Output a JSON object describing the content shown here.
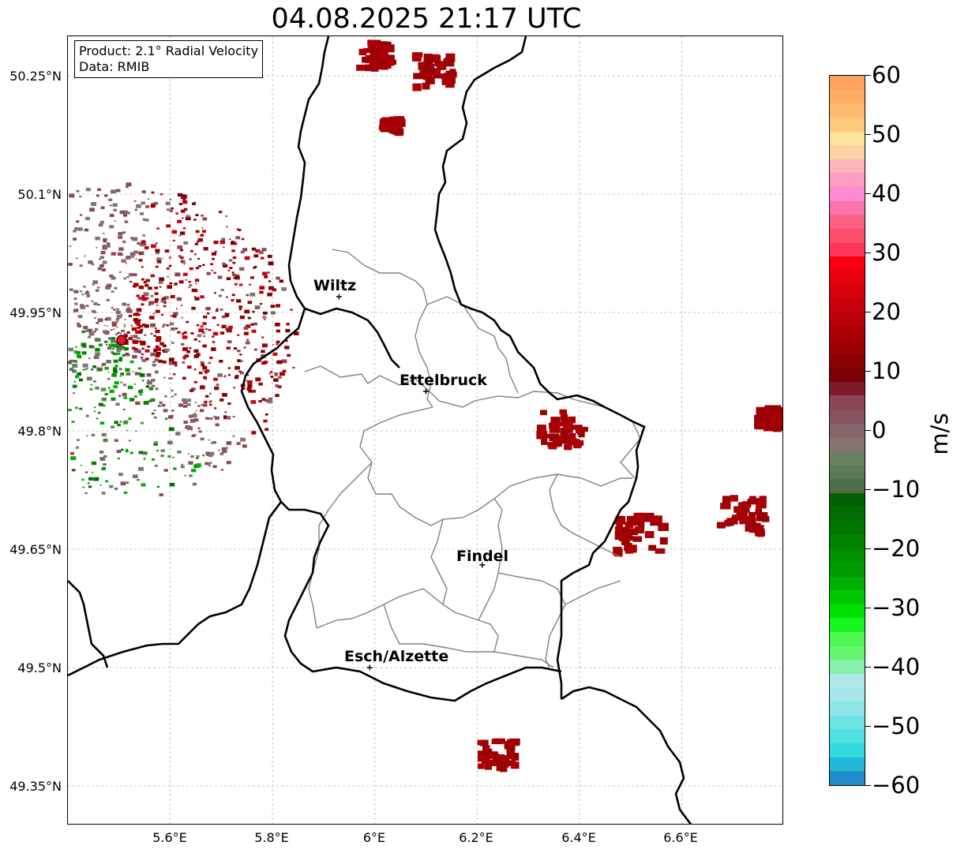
{
  "title": "04.08.2025 21:17 UTC",
  "info_box": {
    "product": "Product: 2.1° Radial Velocity",
    "data": "Data: RMIB"
  },
  "axes": {
    "x_ticks": [
      "5.6°E",
      "5.8°E",
      "6°E",
      "6.2°E",
      "6.4°E",
      "6.6°E"
    ],
    "y_ticks": [
      "50.25°N",
      "50.1°N",
      "49.95°N",
      "49.8°N",
      "49.65°N",
      "49.5°N",
      "49.35°N"
    ],
    "x_values": [
      5.6,
      5.8,
      6.0,
      6.2,
      6.4,
      6.6
    ],
    "y_values": [
      50.25,
      50.1,
      49.95,
      49.8,
      49.65,
      49.5,
      49.35
    ],
    "lon_range": [
      5.4,
      6.8
    ],
    "lat_range": [
      49.3,
      50.3
    ]
  },
  "cities": [
    {
      "name": "Wiltz",
      "lon": 5.93,
      "lat": 49.97
    },
    {
      "name": "Ettelbruck",
      "lon": 6.1,
      "lat": 49.85
    },
    {
      "name": "Findel",
      "lon": 6.21,
      "lat": 49.63
    },
    {
      "name": "Esch/Alzette",
      "lon": 5.99,
      "lat": 49.5
    }
  ],
  "radar_site": {
    "lon": 5.505,
    "lat": 49.915,
    "color": "#e8191c"
  },
  "colorbar": {
    "label": "m/s",
    "min": -60,
    "max": 60,
    "tick_labels": [
      "60",
      "50",
      "40",
      "30",
      "20",
      "10",
      "0",
      "−10",
      "−20",
      "−30",
      "−40",
      "−50",
      "−60"
    ],
    "tick_values": [
      60,
      50,
      40,
      30,
      20,
      10,
      0,
      -10,
      -20,
      -30,
      -40,
      -50,
      -60
    ],
    "colors_top_to_bottom": [
      "#fea35e",
      "#fcaf65",
      "#fdbd70",
      "#fecb7e",
      "#fde49c",
      "#fdd1a2",
      "#fdb5b9",
      "#fe9cc4",
      "#fe8ad2",
      "#fc73ae",
      "#fd5f83",
      "#fc4d6a",
      "#fc375a",
      "#f80012",
      "#e7000e",
      "#d8000c",
      "#c8000a",
      "#b80008",
      "#a90006",
      "#9a0004",
      "#8a0003",
      "#7a0001",
      "#7e1b2a",
      "#8c4552",
      "#86525f",
      "#85656b",
      "#857370",
      "#6b8060",
      "#5c7a57",
      "#4f7046",
      "#006200",
      "#006d00",
      "#007800",
      "#008400",
      "#009000",
      "#009b00",
      "#00b000",
      "#00c800",
      "#00e000",
      "#16f51f",
      "#4bf84f",
      "#66f66e",
      "#88f0aa",
      "#aee7ec",
      "#a6e8e8",
      "#8fe6e6",
      "#6ee2e2",
      "#50dfe2",
      "#30dcde",
      "#22b8d6",
      "#1f8dcc"
    ]
  },
  "map_legend_note": "",
  "colors": {
    "border": "#000000",
    "canton": "#808080",
    "grid": "#b8b8b8"
  }
}
